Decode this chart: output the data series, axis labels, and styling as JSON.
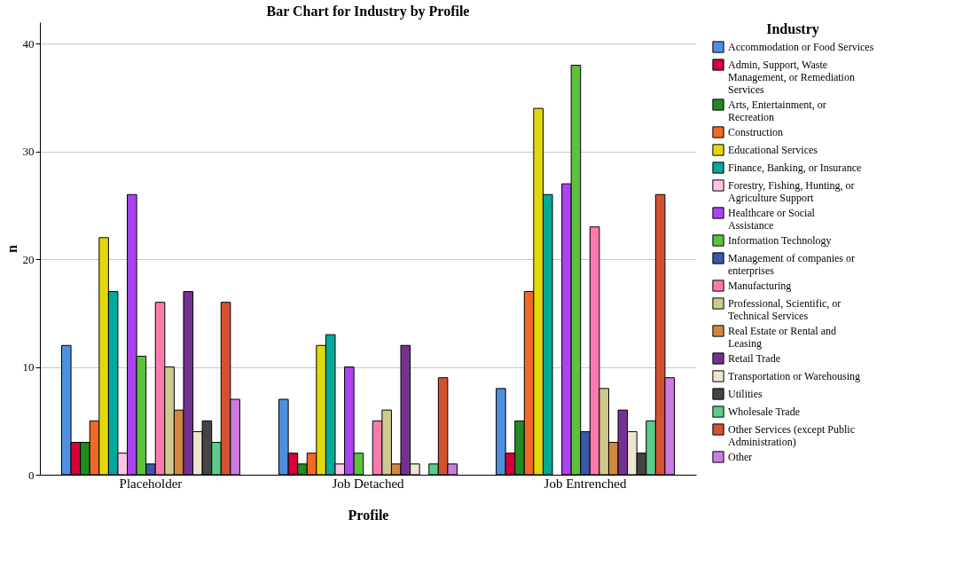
{
  "chart_data": {
    "type": "bar",
    "title": "Bar Chart for Industry by Profile",
    "xlabel": "Profile",
    "ylabel": "n",
    "legend_title": "Industry",
    "legend": "right",
    "grid": "y",
    "categories": [
      "Placeholder",
      "Job Detached",
      "Job Entrenched"
    ],
    "ylim": [
      0,
      42
    ],
    "yticks": [
      0,
      10,
      20,
      30,
      40
    ],
    "series": [
      {
        "name": "Accommodation or Food Services",
        "color": "#4f8fe0",
        "values": [
          12,
          7,
          8
        ]
      },
      {
        "name": "Admin, Support, Waste Management, or Remediation Services",
        "color": "#d5003a",
        "values": [
          3,
          2,
          2
        ]
      },
      {
        "name": "Arts, Entertainment, or Recreation",
        "color": "#218a21",
        "values": [
          3,
          1,
          5
        ]
      },
      {
        "name": "Construction",
        "color": "#f06a25",
        "values": [
          5,
          2,
          17
        ]
      },
      {
        "name": "Educational Services",
        "color": "#e2d80a",
        "values": [
          22,
          12,
          34
        ]
      },
      {
        "name": "Finance, Banking, or Insurance",
        "color": "#00a99a",
        "values": [
          17,
          13,
          26
        ]
      },
      {
        "name": "Forestry, Fishing, Hunting, or Agriculture Support",
        "color": "#ffc6e6",
        "values": [
          2,
          1,
          null
        ]
      },
      {
        "name": "Healthcare or Social Assistance",
        "color": "#a944f0",
        "values": [
          26,
          10,
          27
        ]
      },
      {
        "name": "Information Technology",
        "color": "#5cc23a",
        "values": [
          11,
          2,
          38
        ]
      },
      {
        "name": "Management of companies or enterprises",
        "color": "#3a57a8",
        "values": [
          1,
          null,
          4
        ]
      },
      {
        "name": "Manufacturing",
        "color": "#ff7aac",
        "values": [
          16,
          5,
          23
        ]
      },
      {
        "name": "Professional, Scientific, or Technical Services",
        "color": "#cfc98e",
        "values": [
          10,
          6,
          8
        ]
      },
      {
        "name": "Real Estate or Rental and Leasing",
        "color": "#d08840",
        "values": [
          6,
          1,
          3
        ]
      },
      {
        "name": "Retail Trade",
        "color": "#733290",
        "values": [
          17,
          12,
          6
        ]
      },
      {
        "name": "Transportation or Warehousing",
        "color": "#eee6cf",
        "values": [
          4,
          1,
          4
        ]
      },
      {
        "name": "Utilities",
        "color": "#444444",
        "values": [
          5,
          null,
          2
        ]
      },
      {
        "name": "Wholesale Trade",
        "color": "#5ccc8a",
        "values": [
          3,
          1,
          5
        ]
      },
      {
        "name": "Other Services (except Public Administration)",
        "color": "#d35230",
        "values": [
          16,
          9,
          26
        ]
      },
      {
        "name": "Other",
        "color": "#cc7be0",
        "values": [
          7,
          1,
          9
        ]
      }
    ]
  }
}
